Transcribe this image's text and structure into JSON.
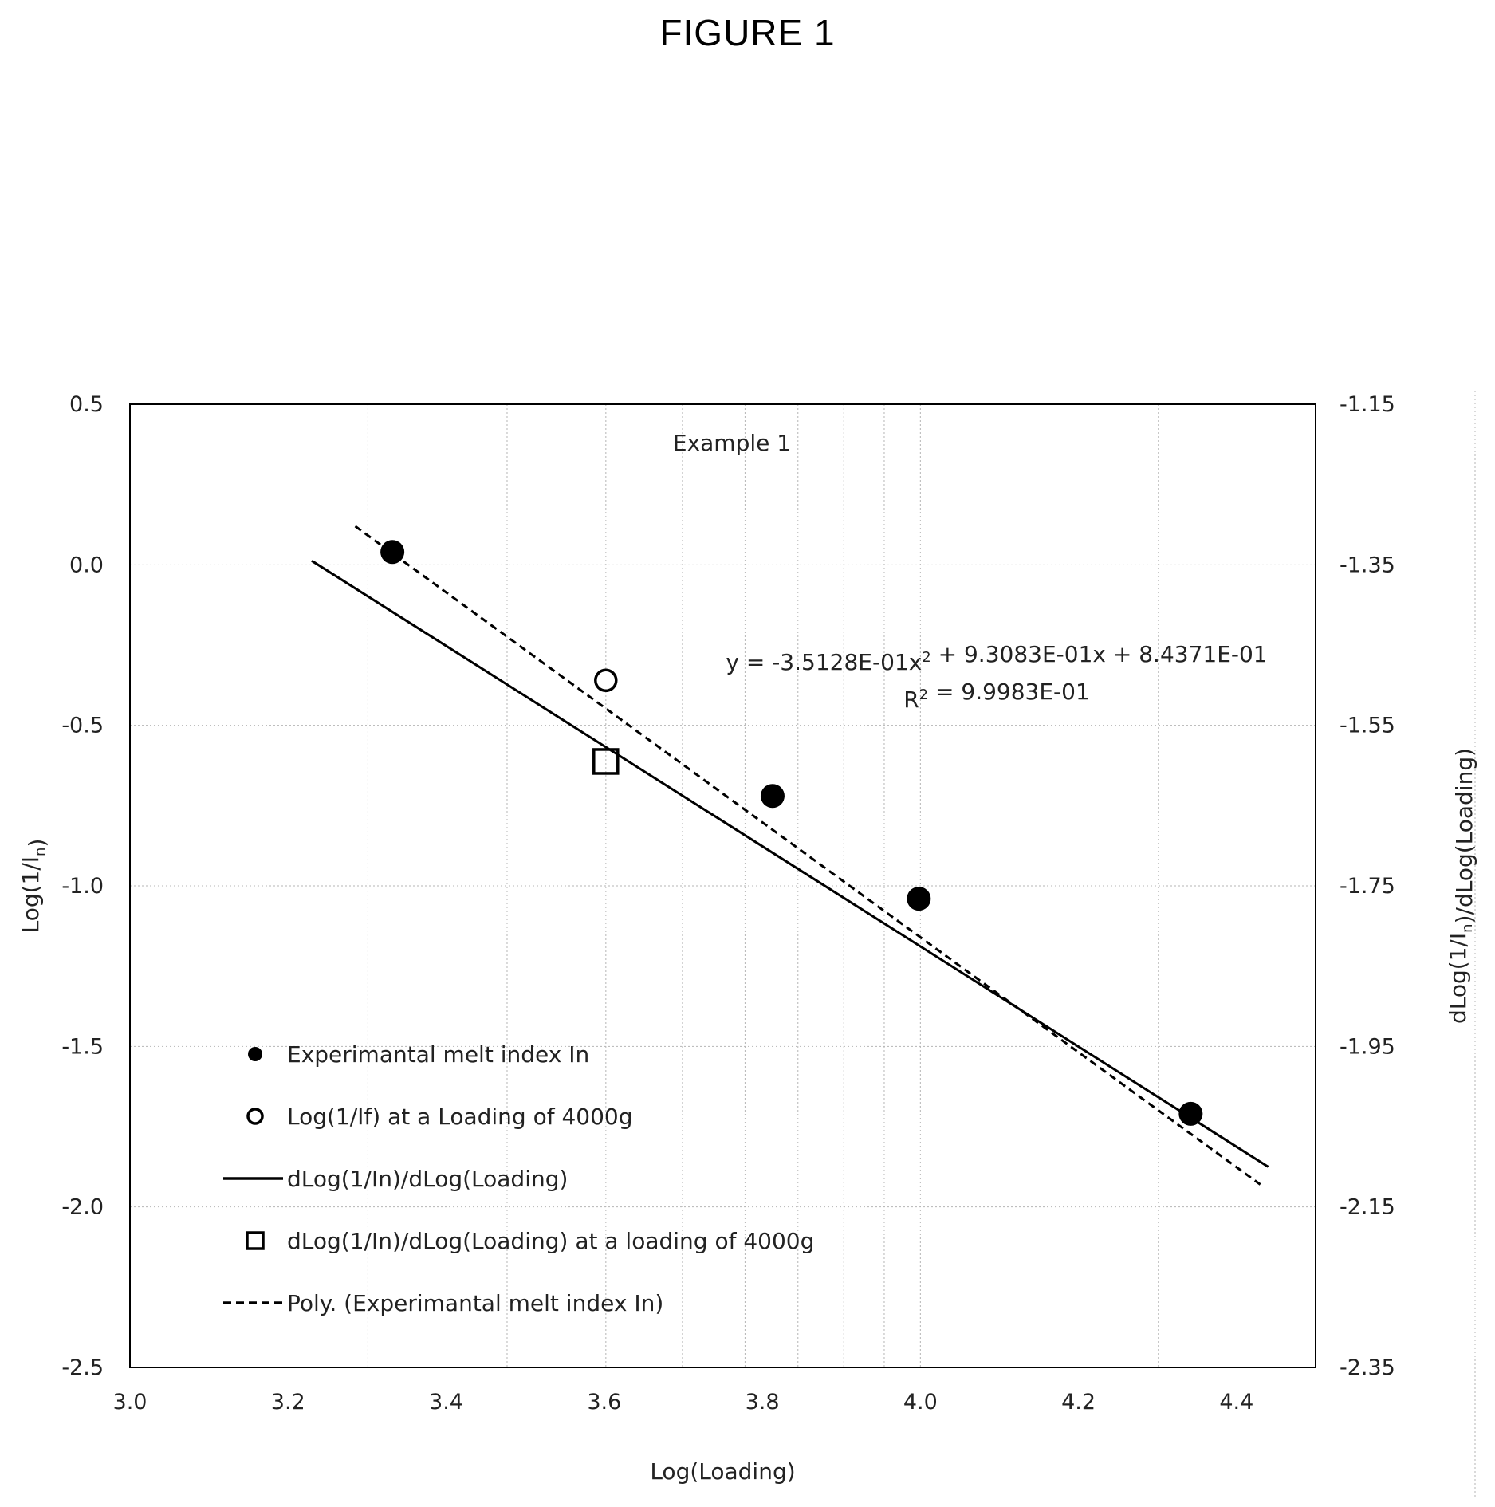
{
  "figure_title": "FIGURE 1",
  "chart_data": {
    "type": "line",
    "title": "Example 1",
    "xlabel": "Log(Loading)",
    "ylabel": "Log(1/Iₙ)",
    "y2label": "dLog(1/Iₙ)/dLog(Loading)",
    "xlim": [
      3.0,
      4.5
    ],
    "ylim": [
      -2.5,
      0.5
    ],
    "y2lim": [
      -2.35,
      -1.15
    ],
    "x_ticks": [
      "3.0",
      "3.2",
      "3.4",
      "3.6",
      "3.8",
      "4.0",
      "4.2",
      "4.4"
    ],
    "y_ticks": [
      "0.5",
      "0.0",
      "-0.5",
      "-1.0",
      "-1.5",
      "-2.0",
      "-2.5"
    ],
    "y2_ticks": [
      "-1.15",
      "-1.35",
      "-1.55",
      "-1.75",
      "-1.95",
      "-2.15",
      "-2.35"
    ],
    "grid": true,
    "legend_position": "bottom-left",
    "annotations": {
      "equation": "y = -3.5128E-01x² + 9.3083E-01x + 8.4371E-01",
      "r_squared": "R² = 9.9983E-01"
    },
    "series": [
      {
        "name": "Experimantal melt index In",
        "style": "filled-circle",
        "axis": "left",
        "x": [
          3.332,
          3.813,
          3.998,
          4.342
        ],
        "y": [
          0.04,
          -0.72,
          -1.04,
          -1.71
        ]
      },
      {
        "name": "Log(1/If) at a Loading of 4000g",
        "style": "open-circle",
        "axis": "left",
        "x": [
          3.602
        ],
        "y": [
          -0.36
        ]
      },
      {
        "name": "dLog(1/In)/dLog(Loading)",
        "style": "solid-line",
        "axis": "right",
        "x": [
          3.23,
          4.44
        ],
        "y": [
          -1.345,
          -2.1
        ]
      },
      {
        "name": "dLog(1/In)/dLog(Loading) at a loading of 4000g",
        "style": "open-square",
        "axis": "right",
        "x": [
          3.602
        ],
        "y": [
          -1.595
        ]
      },
      {
        "name": "Poly. (Experimantal melt index In)",
        "style": "dashed-line",
        "axis": "left",
        "x": [
          3.285,
          4.43
        ],
        "y": [
          0.12,
          -1.93
        ]
      }
    ]
  }
}
